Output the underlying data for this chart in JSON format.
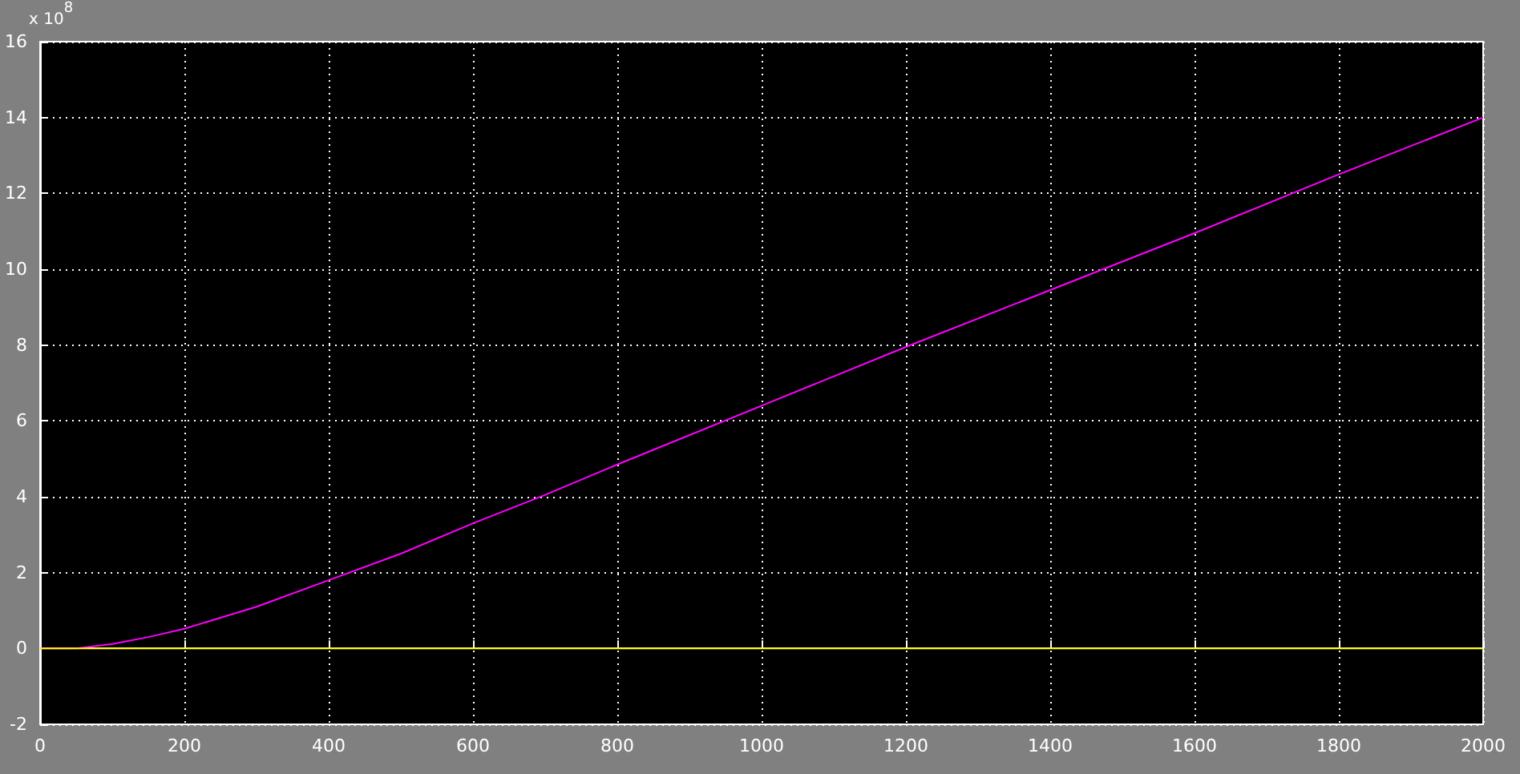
{
  "chart_data": {
    "type": "line",
    "xlim": [
      0,
      2000
    ],
    "xticks": [
      0,
      200,
      400,
      600,
      800,
      1000,
      1200,
      1400,
      1600,
      1800,
      2000
    ],
    "ylim": [
      -2,
      16
    ],
    "yticks": [
      -2,
      0,
      2,
      4,
      6,
      8,
      10,
      12,
      14,
      16
    ],
    "grid": true,
    "marker": "none",
    "line_style": "solid",
    "annotations": [
      "x 10$^{8}$"
    ],
    "series": [
      {
        "color": "#ff00ff",
        "x": [
          0,
          50,
          100,
          150,
          200,
          300,
          400,
          500,
          600,
          700,
          800,
          1000,
          1200,
          1400,
          1600,
          1800,
          2000
        ],
        "values": [
          0,
          0,
          0.12,
          0.3,
          0.52,
          1.1,
          1.8,
          2.5,
          3.3,
          4.05,
          4.85,
          6.4,
          7.95,
          9.45,
          10.95,
          12.5,
          14
        ]
      },
      {
        "color": "#ffff00",
        "x": [
          0,
          2000
        ],
        "values": [
          0,
          0
        ]
      }
    ]
  }
}
